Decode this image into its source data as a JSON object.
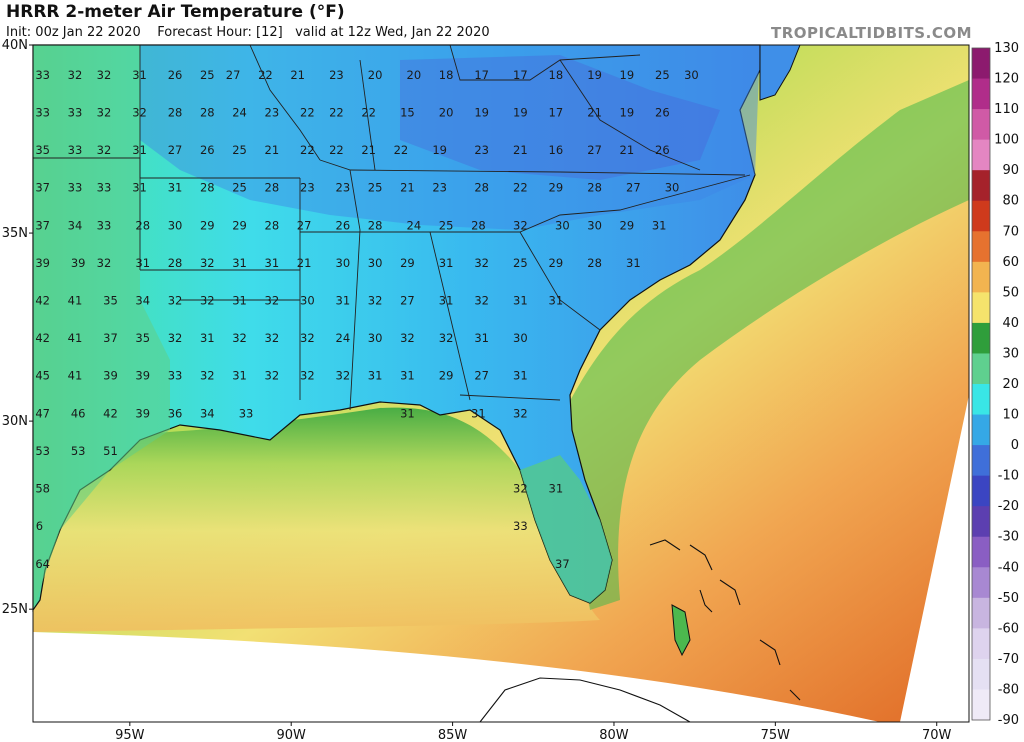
{
  "header": {
    "title": "HRRR 2-meter Air Temperature (°F)",
    "init": "Init: 00z Jan 22 2020",
    "forecast_hour": "Forecast Hour: [12]",
    "valid": "valid at 12z Wed, Jan 22 2020",
    "brand": "TROPICALTIDBITS.COM"
  },
  "map": {
    "lon_range": [
      -98,
      -69
    ],
    "lat_range": [
      22,
      40
    ],
    "lat_labels": [
      "40N",
      "35N",
      "30N",
      "25N"
    ],
    "lon_labels": [
      "95W",
      "90W",
      "85W",
      "80W",
      "75W",
      "70W"
    ]
  },
  "colorbar": {
    "unit": "°F",
    "ticks": [
      130,
      120,
      110,
      100,
      90,
      80,
      70,
      60,
      50,
      40,
      30,
      20,
      10,
      0,
      -10,
      -20,
      -30,
      -40,
      -50,
      -60,
      -70,
      -80,
      -90
    ],
    "colors": [
      "#8c1a6e",
      "#b02d8a",
      "#d05aa6",
      "#e486c2",
      "#a5222b",
      "#cf3a1c",
      "#e6722f",
      "#f2b450",
      "#f5e36c",
      "#2f9e3b",
      "#5fd08f",
      "#39e6e6",
      "#35a8e6",
      "#3f6fd9",
      "#3b45c2",
      "#5c3fb0",
      "#8a5ec3",
      "#a888d2",
      "#c8b5e0",
      "#ded3ee",
      "#e5e0f3",
      "#efeaf7"
    ],
    "accent_ocean": "#e8893a",
    "accent_land_cold": "#3fd2e8"
  },
  "stations": [
    {
      "lon": -97.7,
      "lat": 39.1,
      "t": "33"
    },
    {
      "lon": -96.7,
      "lat": 39.1,
      "t": "32"
    },
    {
      "lon": -95.8,
      "lat": 39.1,
      "t": "32"
    },
    {
      "lon": -94.7,
      "lat": 39.1,
      "t": "31"
    },
    {
      "lon": -93.6,
      "lat": 39.1,
      "t": "26"
    },
    {
      "lon": -92.6,
      "lat": 39.1,
      "t": "25"
    },
    {
      "lon": -91.8,
      "lat": 39.1,
      "t": "27"
    },
    {
      "lon": -90.8,
      "lat": 39.1,
      "t": "22"
    },
    {
      "lon": -89.8,
      "lat": 39.1,
      "t": "21"
    },
    {
      "lon": -88.6,
      "lat": 39.1,
      "t": "23"
    },
    {
      "lon": -87.4,
      "lat": 39.1,
      "t": "20"
    },
    {
      "lon": -86.2,
      "lat": 39.1,
      "t": "20"
    },
    {
      "lon": -85.2,
      "lat": 39.1,
      "t": "18"
    },
    {
      "lon": -84.1,
      "lat": 39.1,
      "t": "17"
    },
    {
      "lon": -82.9,
      "lat": 39.1,
      "t": "17"
    },
    {
      "lon": -81.8,
      "lat": 39.1,
      "t": "18"
    },
    {
      "lon": -80.6,
      "lat": 39.1,
      "t": "19"
    },
    {
      "lon": -79.6,
      "lat": 39.1,
      "t": "19"
    },
    {
      "lon": -78.5,
      "lat": 39.1,
      "t": "25"
    },
    {
      "lon": -77.6,
      "lat": 39.1,
      "t": "30"
    },
    {
      "lon": -97.7,
      "lat": 38.1,
      "t": "33"
    },
    {
      "lon": -96.7,
      "lat": 38.1,
      "t": "33"
    },
    {
      "lon": -95.8,
      "lat": 38.1,
      "t": "32"
    },
    {
      "lon": -94.7,
      "lat": 38.1,
      "t": "32"
    },
    {
      "lon": -93.6,
      "lat": 38.1,
      "t": "28"
    },
    {
      "lon": -92.6,
      "lat": 38.1,
      "t": "28"
    },
    {
      "lon": -91.6,
      "lat": 38.1,
      "t": "24"
    },
    {
      "lon": -90.6,
      "lat": 38.1,
      "t": "23"
    },
    {
      "lon": -89.5,
      "lat": 38.1,
      "t": "22"
    },
    {
      "lon": -88.6,
      "lat": 38.1,
      "t": "22"
    },
    {
      "lon": -87.6,
      "lat": 38.1,
      "t": "22"
    },
    {
      "lon": -86.4,
      "lat": 38.1,
      "t": "15"
    },
    {
      "lon": -85.2,
      "lat": 38.1,
      "t": "20"
    },
    {
      "lon": -84.1,
      "lat": 38.1,
      "t": "19"
    },
    {
      "lon": -82.9,
      "lat": 38.1,
      "t": "19"
    },
    {
      "lon": -81.8,
      "lat": 38.1,
      "t": "17"
    },
    {
      "lon": -80.6,
      "lat": 38.1,
      "t": "21"
    },
    {
      "lon": -79.6,
      "lat": 38.1,
      "t": "19"
    },
    {
      "lon": -78.5,
      "lat": 38.1,
      "t": "26"
    },
    {
      "lon": -97.7,
      "lat": 37.1,
      "t": "35"
    },
    {
      "lon": -96.7,
      "lat": 37.1,
      "t": "33"
    },
    {
      "lon": -95.8,
      "lat": 37.1,
      "t": "32"
    },
    {
      "lon": -94.7,
      "lat": 37.1,
      "t": "31"
    },
    {
      "lon": -93.6,
      "lat": 37.1,
      "t": "27"
    },
    {
      "lon": -92.6,
      "lat": 37.1,
      "t": "26"
    },
    {
      "lon": -91.6,
      "lat": 37.1,
      "t": "25"
    },
    {
      "lon": -90.6,
      "lat": 37.1,
      "t": "21"
    },
    {
      "lon": -89.5,
      "lat": 37.1,
      "t": "22"
    },
    {
      "lon": -88.6,
      "lat": 37.1,
      "t": "22"
    },
    {
      "lon": -87.6,
      "lat": 37.1,
      "t": "21"
    },
    {
      "lon": -86.6,
      "lat": 37.1,
      "t": "22"
    },
    {
      "lon": -85.4,
      "lat": 37.1,
      "t": "19"
    },
    {
      "lon": -84.1,
      "lat": 37.1,
      "t": "23"
    },
    {
      "lon": -82.9,
      "lat": 37.1,
      "t": "21"
    },
    {
      "lon": -81.8,
      "lat": 37.1,
      "t": "16"
    },
    {
      "lon": -80.6,
      "lat": 37.1,
      "t": "27"
    },
    {
      "lon": -79.6,
      "lat": 37.1,
      "t": "21"
    },
    {
      "lon": -78.5,
      "lat": 37.1,
      "t": "26"
    },
    {
      "lon": -97.7,
      "lat": 36.1,
      "t": "37"
    },
    {
      "lon": -96.7,
      "lat": 36.1,
      "t": "33"
    },
    {
      "lon": -95.8,
      "lat": 36.1,
      "t": "33"
    },
    {
      "lon": -94.7,
      "lat": 36.1,
      "t": "31"
    },
    {
      "lon": -93.6,
      "lat": 36.1,
      "t": "31"
    },
    {
      "lon": -92.6,
      "lat": 36.1,
      "t": "28"
    },
    {
      "lon": -91.6,
      "lat": 36.1,
      "t": "25"
    },
    {
      "lon": -90.6,
      "lat": 36.1,
      "t": "28"
    },
    {
      "lon": -89.5,
      "lat": 36.1,
      "t": "23"
    },
    {
      "lon": -88.4,
      "lat": 36.1,
      "t": "23"
    },
    {
      "lon": -87.4,
      "lat": 36.1,
      "t": "25"
    },
    {
      "lon": -86.4,
      "lat": 36.1,
      "t": "21"
    },
    {
      "lon": -85.4,
      "lat": 36.1,
      "t": "23"
    },
    {
      "lon": -84.1,
      "lat": 36.1,
      "t": "28"
    },
    {
      "lon": -82.9,
      "lat": 36.1,
      "t": "22"
    },
    {
      "lon": -81.8,
      "lat": 36.1,
      "t": "29"
    },
    {
      "lon": -80.6,
      "lat": 36.1,
      "t": "28"
    },
    {
      "lon": -79.4,
      "lat": 36.1,
      "t": "27"
    },
    {
      "lon": -78.2,
      "lat": 36.1,
      "t": "30"
    },
    {
      "lon": -97.7,
      "lat": 35.1,
      "t": "37"
    },
    {
      "lon": -96.7,
      "lat": 35.1,
      "t": "34"
    },
    {
      "lon": -95.8,
      "lat": 35.1,
      "t": "33"
    },
    {
      "lon": -94.6,
      "lat": 35.1,
      "t": "28"
    },
    {
      "lon": -93.6,
      "lat": 35.1,
      "t": "30"
    },
    {
      "lon": -92.6,
      "lat": 35.1,
      "t": "29"
    },
    {
      "lon": -91.6,
      "lat": 35.1,
      "t": "29"
    },
    {
      "lon": -90.6,
      "lat": 35.1,
      "t": "28"
    },
    {
      "lon": -89.6,
      "lat": 35.1,
      "t": "27"
    },
    {
      "lon": -88.4,
      "lat": 35.1,
      "t": "26"
    },
    {
      "lon": -87.4,
      "lat": 35.1,
      "t": "28"
    },
    {
      "lon": -86.2,
      "lat": 35.1,
      "t": "24"
    },
    {
      "lon": -85.2,
      "lat": 35.1,
      "t": "25"
    },
    {
      "lon": -84.2,
      "lat": 35.1,
      "t": "28"
    },
    {
      "lon": -82.9,
      "lat": 35.1,
      "t": "32"
    },
    {
      "lon": -81.6,
      "lat": 35.1,
      "t": "30"
    },
    {
      "lon": -80.6,
      "lat": 35.1,
      "t": "30"
    },
    {
      "lon": -79.6,
      "lat": 35.1,
      "t": "29"
    },
    {
      "lon": -78.6,
      "lat": 35.1,
      "t": "31"
    },
    {
      "lon": -97.7,
      "lat": 34.1,
      "t": "39"
    },
    {
      "lon": -96.6,
      "lat": 34.1,
      "t": "39"
    },
    {
      "lon": -95.8,
      "lat": 34.1,
      "t": "32"
    },
    {
      "lon": -94.6,
      "lat": 34.1,
      "t": "31"
    },
    {
      "lon": -93.6,
      "lat": 34.1,
      "t": "28"
    },
    {
      "lon": -92.6,
      "lat": 34.1,
      "t": "32"
    },
    {
      "lon": -91.6,
      "lat": 34.1,
      "t": "31"
    },
    {
      "lon": -90.6,
      "lat": 34.1,
      "t": "31"
    },
    {
      "lon": -89.6,
      "lat": 34.1,
      "t": "21"
    },
    {
      "lon": -88.4,
      "lat": 34.1,
      "t": "30"
    },
    {
      "lon": -87.4,
      "lat": 34.1,
      "t": "30"
    },
    {
      "lon": -86.4,
      "lat": 34.1,
      "t": "29"
    },
    {
      "lon": -85.2,
      "lat": 34.1,
      "t": "31"
    },
    {
      "lon": -84.1,
      "lat": 34.1,
      "t": "32"
    },
    {
      "lon": -82.9,
      "lat": 34.1,
      "t": "25"
    },
    {
      "lon": -81.8,
      "lat": 34.1,
      "t": "29"
    },
    {
      "lon": -80.6,
      "lat": 34.1,
      "t": "28"
    },
    {
      "lon": -79.4,
      "lat": 34.1,
      "t": "31"
    },
    {
      "lon": -97.7,
      "lat": 33.1,
      "t": "42"
    },
    {
      "lon": -96.7,
      "lat": 33.1,
      "t": "41"
    },
    {
      "lon": -95.6,
      "lat": 33.1,
      "t": "35"
    },
    {
      "lon": -94.6,
      "lat": 33.1,
      "t": "34"
    },
    {
      "lon": -93.6,
      "lat": 33.1,
      "t": "32"
    },
    {
      "lon": -92.6,
      "lat": 33.1,
      "t": "32"
    },
    {
      "lon": -91.6,
      "lat": 33.1,
      "t": "31"
    },
    {
      "lon": -90.6,
      "lat": 33.1,
      "t": "32"
    },
    {
      "lon": -89.5,
      "lat": 33.1,
      "t": "30"
    },
    {
      "lon": -88.4,
      "lat": 33.1,
      "t": "31"
    },
    {
      "lon": -87.4,
      "lat": 33.1,
      "t": "32"
    },
    {
      "lon": -86.4,
      "lat": 33.1,
      "t": "27"
    },
    {
      "lon": -85.2,
      "lat": 33.1,
      "t": "31"
    },
    {
      "lon": -84.1,
      "lat": 33.1,
      "t": "32"
    },
    {
      "lon": -82.9,
      "lat": 33.1,
      "t": "31"
    },
    {
      "lon": -81.8,
      "lat": 33.1,
      "t": "31"
    },
    {
      "lon": -97.7,
      "lat": 32.1,
      "t": "42"
    },
    {
      "lon": -96.7,
      "lat": 32.1,
      "t": "41"
    },
    {
      "lon": -95.6,
      "lat": 32.1,
      "t": "37"
    },
    {
      "lon": -94.6,
      "lat": 32.1,
      "t": "35"
    },
    {
      "lon": -93.6,
      "lat": 32.1,
      "t": "32"
    },
    {
      "lon": -92.6,
      "lat": 32.1,
      "t": "31"
    },
    {
      "lon": -91.6,
      "lat": 32.1,
      "t": "32"
    },
    {
      "lon": -90.6,
      "lat": 32.1,
      "t": "32"
    },
    {
      "lon": -89.5,
      "lat": 32.1,
      "t": "32"
    },
    {
      "lon": -88.4,
      "lat": 32.1,
      "t": "24"
    },
    {
      "lon": -87.4,
      "lat": 32.1,
      "t": "30"
    },
    {
      "lon": -86.4,
      "lat": 32.1,
      "t": "32"
    },
    {
      "lon": -85.2,
      "lat": 32.1,
      "t": "32"
    },
    {
      "lon": -84.1,
      "lat": 32.1,
      "t": "31"
    },
    {
      "lon": -82.9,
      "lat": 32.1,
      "t": "30"
    },
    {
      "lon": -97.7,
      "lat": 31.1,
      "t": "45"
    },
    {
      "lon": -96.7,
      "lat": 31.1,
      "t": "41"
    },
    {
      "lon": -95.6,
      "lat": 31.1,
      "t": "39"
    },
    {
      "lon": -94.6,
      "lat": 31.1,
      "t": "39"
    },
    {
      "lon": -93.6,
      "lat": 31.1,
      "t": "33"
    },
    {
      "lon": -92.6,
      "lat": 31.1,
      "t": "32"
    },
    {
      "lon": -91.6,
      "lat": 31.1,
      "t": "31"
    },
    {
      "lon": -90.6,
      "lat": 31.1,
      "t": "32"
    },
    {
      "lon": -89.5,
      "lat": 31.1,
      "t": "32"
    },
    {
      "lon": -88.4,
      "lat": 31.1,
      "t": "32"
    },
    {
      "lon": -87.4,
      "lat": 31.1,
      "t": "31"
    },
    {
      "lon": -86.4,
      "lat": 31.1,
      "t": "31"
    },
    {
      "lon": -85.2,
      "lat": 31.1,
      "t": "29"
    },
    {
      "lon": -84.1,
      "lat": 31.1,
      "t": "27"
    },
    {
      "lon": -82.9,
      "lat": 31.1,
      "t": "31"
    },
    {
      "lon": -97.7,
      "lat": 30.1,
      "t": "47"
    },
    {
      "lon": -96.6,
      "lat": 30.1,
      "t": "46"
    },
    {
      "lon": -95.6,
      "lat": 30.1,
      "t": "42"
    },
    {
      "lon": -94.6,
      "lat": 30.1,
      "t": "39"
    },
    {
      "lon": -93.6,
      "lat": 30.1,
      "t": "36"
    },
    {
      "lon": -92.6,
      "lat": 30.1,
      "t": "34"
    },
    {
      "lon": -91.4,
      "lat": 30.1,
      "t": "33"
    },
    {
      "lon": -86.4,
      "lat": 30.1,
      "t": "31"
    },
    {
      "lon": -84.2,
      "lat": 30.1,
      "t": "31"
    },
    {
      "lon": -82.9,
      "lat": 30.1,
      "t": "32"
    },
    {
      "lon": -97.7,
      "lat": 29.1,
      "t": "53"
    },
    {
      "lon": -96.6,
      "lat": 29.1,
      "t": "53"
    },
    {
      "lon": -95.6,
      "lat": 29.1,
      "t": "51"
    },
    {
      "lon": -97.7,
      "lat": 28.1,
      "t": "58"
    },
    {
      "lon": -82.9,
      "lat": 28.1,
      "t": "32"
    },
    {
      "lon": -81.8,
      "lat": 28.1,
      "t": "31"
    },
    {
      "lon": -97.8,
      "lat": 27.1,
      "t": "6"
    },
    {
      "lon": -82.9,
      "lat": 27.1,
      "t": "33"
    },
    {
      "lon": -97.7,
      "lat": 26.1,
      "t": "64"
    },
    {
      "lon": -81.6,
      "lat": 26.1,
      "t": "37"
    }
  ]
}
